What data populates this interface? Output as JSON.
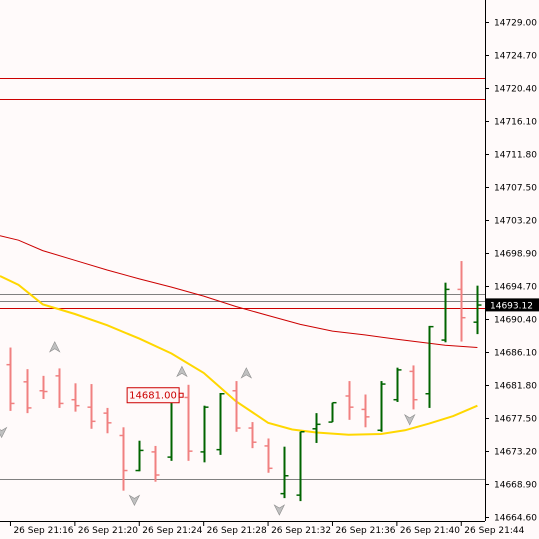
{
  "chart_data": {
    "type": "ohlc",
    "symbol_current_price": "14693.12",
    "marker_label": "14681.00",
    "colors": {
      "background": "#fffafa",
      "bull": "#006400",
      "bear": "#f08080",
      "ma_fast": "#ffd700",
      "ma_slow": "#cc0000",
      "hline_red": "#cc0000",
      "hline_gray": "#808080",
      "axis": "#000000",
      "price_box": "#000000",
      "arrow": "#c0c0c0"
    },
    "y_axis": {
      "min": 14664.6,
      "max": 14731.0,
      "ticks": [
        "14729.00",
        "14724.70",
        "14720.40",
        "14716.10",
        "14711.80",
        "14707.50",
        "14703.20",
        "14698.90",
        "14694.70",
        "14690.40",
        "14686.10",
        "14681.80",
        "14677.50",
        "14673.20",
        "14668.90",
        "14664.60"
      ]
    },
    "x_axis": {
      "ticks": [
        {
          "label": "26 Sep 21:16",
          "bar": 0
        },
        {
          "label": "26 Sep 21:20",
          "bar": 4
        },
        {
          "label": "26 Sep 21:24",
          "bar": 8
        },
        {
          "label": "26 Sep 21:28",
          "bar": 12
        },
        {
          "label": "26 Sep 21:32",
          "bar": 16
        },
        {
          "label": "26 Sep 21:36",
          "bar": 20
        },
        {
          "label": "26 Sep 21:40",
          "bar": 24
        },
        {
          "label": "26 Sep 21:44",
          "bar": 28
        }
      ]
    },
    "bar_start": -0.65,
    "bars": [
      [
        14685.1,
        14687.4,
        14678.9,
        14679.9
      ],
      [
        14682.8,
        14684.5,
        14678.6,
        14679.3
      ],
      [
        14681.6,
        14683.6,
        14680.5,
        14681.5
      ],
      [
        14683.6,
        14684.6,
        14679.3,
        14679.9
      ],
      [
        14680.4,
        14682.6,
        14678.8,
        14679.6
      ],
      [
        14679.4,
        14682.5,
        14676.5,
        14677.5
      ],
      [
        14678.6,
        14679.3,
        14675.9,
        14677.3
      ],
      [
        14675.6,
        14676.7,
        14668.2,
        14670.9
      ],
      [
        14670.9,
        14674.9,
        14670.8,
        14673.6
      ],
      [
        14673.4,
        14674.2,
        14669.4,
        14670.3
      ],
      [
        14672.7,
        14682.0,
        14672.2,
        14680.8
      ],
      [
        14680.7,
        14682.4,
        14672.2,
        14673.5
      ],
      [
        14673.4,
        14679.6,
        14672.0,
        14679.4
      ],
      [
        14673.7,
        14681.3,
        14673.0,
        14681.2
      ],
      [
        14681.6,
        14682.9,
        14676.1,
        14676.6
      ],
      [
        14676.6,
        14677.4,
        14673.9,
        14674.7
      ],
      [
        14674.2,
        14675.2,
        14670.6,
        14671.2
      ],
      [
        14667.8,
        14674.1,
        14667.2,
        14670.2
      ],
      [
        14667.6,
        14676.1,
        14666.8,
        14676.1
      ],
      [
        14676.5,
        14678.6,
        14674.6,
        14677.1
      ],
      [
        14677.4,
        14680.0,
        14677.4,
        14680.0
      ],
      [
        14680.9,
        14682.9,
        14677.7,
        14679.4
      ],
      [
        14679.1,
        14681.1,
        14676.7,
        14678.1
      ],
      [
        14676.3,
        14682.9,
        14676.1,
        14682.5
      ],
      [
        14680.4,
        14684.7,
        14680.1,
        14684.4
      ],
      [
        14684.2,
        14685.0,
        14679.1,
        14680.4
      ],
      [
        14681.2,
        14690.3,
        14679.3,
        14690.2
      ],
      [
        14688.4,
        14696.1,
        14688.1,
        14695.2
      ],
      [
        14695.2,
        14699.0,
        14688.2,
        14691.4
      ],
      [
        14690.8,
        14695.7,
        14689.2,
        14693.1
      ]
    ],
    "ma_fast": [
      [
        -0.65,
        14697.0
      ],
      [
        0.5,
        14695.8
      ],
      [
        2.0,
        14693.2
      ],
      [
        4.0,
        14691.9
      ],
      [
        6.0,
        14690.4
      ],
      [
        8.0,
        14688.6
      ],
      [
        10.0,
        14686.6
      ],
      [
        12.0,
        14684.0
      ],
      [
        14.0,
        14680.2
      ],
      [
        16.0,
        14677.3
      ],
      [
        17.5,
        14676.4
      ],
      [
        19.0,
        14676.0
      ],
      [
        21.0,
        14675.7
      ],
      [
        23.0,
        14675.8
      ],
      [
        24.5,
        14676.3
      ],
      [
        26.0,
        14677.2
      ],
      [
        27.5,
        14678.2
      ],
      [
        29.0,
        14679.6
      ]
    ],
    "ma_slow": [
      [
        -0.65,
        14702.4
      ],
      [
        0.5,
        14701.8
      ],
      [
        2.0,
        14700.4
      ],
      [
        4.0,
        14699.1
      ],
      [
        6.0,
        14697.8
      ],
      [
        8.0,
        14696.6
      ],
      [
        10.0,
        14695.5
      ],
      [
        12.0,
        14694.3
      ],
      [
        14.0,
        14692.9
      ],
      [
        16.0,
        14691.7
      ],
      [
        18.0,
        14690.5
      ],
      [
        20.0,
        14689.6
      ],
      [
        22.0,
        14689.1
      ],
      [
        24.0,
        14688.5
      ],
      [
        25.5,
        14688.1
      ],
      [
        27.0,
        14687.7
      ],
      [
        29.0,
        14687.4
      ]
    ],
    "hlines": [
      {
        "price": 14723.5,
        "color": "red"
      },
      {
        "price": 14720.7,
        "color": "red"
      },
      {
        "price": 14694.6,
        "color": "gray"
      },
      {
        "price": 14693.6,
        "color": "gray"
      },
      {
        "price": 14692.7,
        "color": "red"
      },
      {
        "price": 14669.8,
        "color": "gray"
      }
    ],
    "arrows": [
      {
        "bar": -0.55,
        "price": 14676.0,
        "dir": "down"
      },
      {
        "bar": 2.75,
        "price": 14687.5,
        "dir": "up"
      },
      {
        "bar": 7.7,
        "price": 14666.9,
        "dir": "down"
      },
      {
        "bar": 10.65,
        "price": 14684.2,
        "dir": "up"
      },
      {
        "bar": 14.65,
        "price": 14684.0,
        "dir": "up"
      },
      {
        "bar": 16.7,
        "price": 14665.6,
        "dir": "down"
      },
      {
        "bar": 24.8,
        "price": 14677.7,
        "dir": "down"
      }
    ],
    "marker": {
      "bar": 10.6,
      "price": 14681.0
    }
  }
}
